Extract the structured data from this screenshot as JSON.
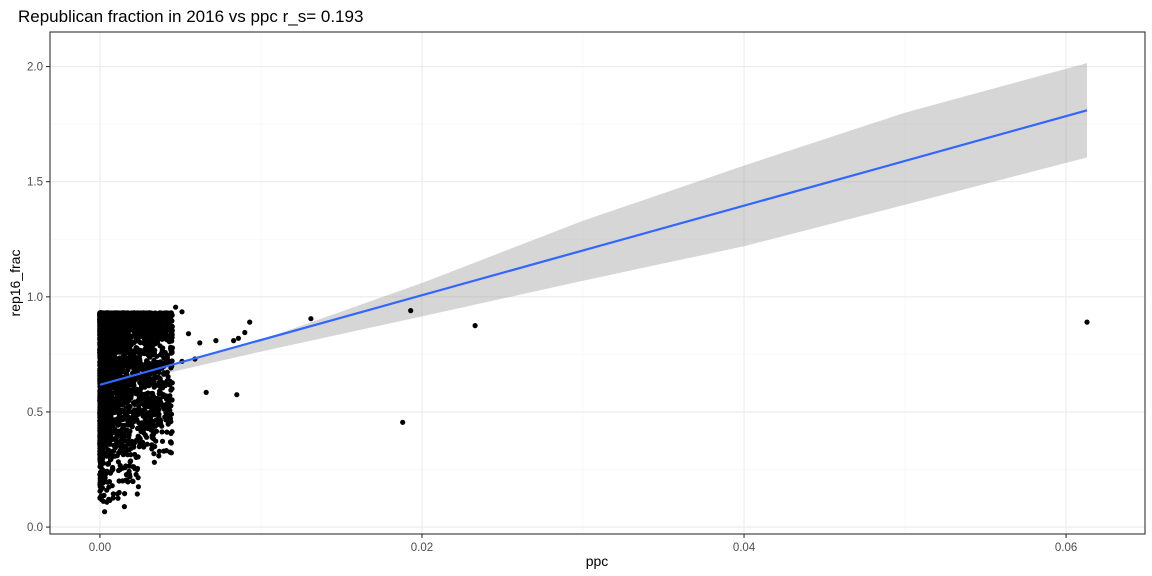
{
  "chart_data": {
    "type": "scatter",
    "title": "Republican fraction in 2016 vs ppc  r_s= 0.193",
    "xlabel": "ppc",
    "ylabel": "rep16_frac",
    "xlim": [
      -0.0031,
      0.0649
    ],
    "ylim": [
      -0.03,
      2.15
    ],
    "x_ticks": [
      0.0,
      0.02,
      0.04,
      0.06
    ],
    "x_tick_labels": [
      "0.00",
      "0.02",
      "0.04",
      "0.06"
    ],
    "y_ticks": [
      0.0,
      0.5,
      1.0,
      1.5,
      2.0
    ],
    "y_tick_labels": [
      "0.0",
      "0.5",
      "1.0",
      "1.5",
      "2.0"
    ],
    "grid": true,
    "legend": "none",
    "colors": {
      "points": "#000000",
      "fit_line": "#3366FF",
      "ribbon": "#999999"
    },
    "fit": {
      "method": "linear",
      "line": [
        [
          0.0,
          0.618
        ],
        [
          0.0613,
          1.81
        ]
      ],
      "ribbon": [
        [
          0.0,
          0.598,
          0.638
        ],
        [
          0.005,
          0.682,
          0.712
        ],
        [
          0.01,
          0.762,
          0.812
        ],
        [
          0.02,
          0.915,
          1.06
        ],
        [
          0.03,
          1.07,
          1.33
        ],
        [
          0.04,
          1.22,
          1.57
        ],
        [
          0.05,
          1.4,
          1.8
        ],
        [
          0.0613,
          1.605,
          2.015
        ]
      ]
    },
    "outliers": [
      [
        0.0131,
        0.905
      ],
      [
        0.0193,
        0.94
      ],
      [
        0.0188,
        0.455
      ],
      [
        0.0233,
        0.875
      ],
      [
        0.0613,
        0.89
      ],
      [
        0.0085,
        0.575
      ],
      [
        0.009,
        0.845
      ],
      [
        0.0083,
        0.81
      ],
      [
        0.0047,
        0.955
      ],
      [
        0.0051,
        0.935
      ],
      [
        0.0066,
        0.585
      ],
      [
        0.0051,
        0.72
      ],
      [
        0.0044,
        0.37
      ],
      [
        0.0072,
        0.81
      ],
      [
        0.0062,
        0.8
      ],
      [
        0.0059,
        0.73
      ],
      [
        0.0055,
        0.84
      ],
      [
        0.0086,
        0.82
      ],
      [
        0.0093,
        0.89
      ],
      [
        0.0025,
        0.83
      ],
      [
        0.0032,
        0.58
      ],
      [
        0.0037,
        0.54
      ],
      [
        0.004,
        0.67
      ],
      [
        0.0034,
        0.35
      ],
      [
        0.0029,
        0.39
      ]
    ],
    "cluster": {
      "x_range": [
        0.0,
        0.0045
      ],
      "y_range": [
        0.04,
        0.93
      ],
      "n": 3000
    }
  }
}
